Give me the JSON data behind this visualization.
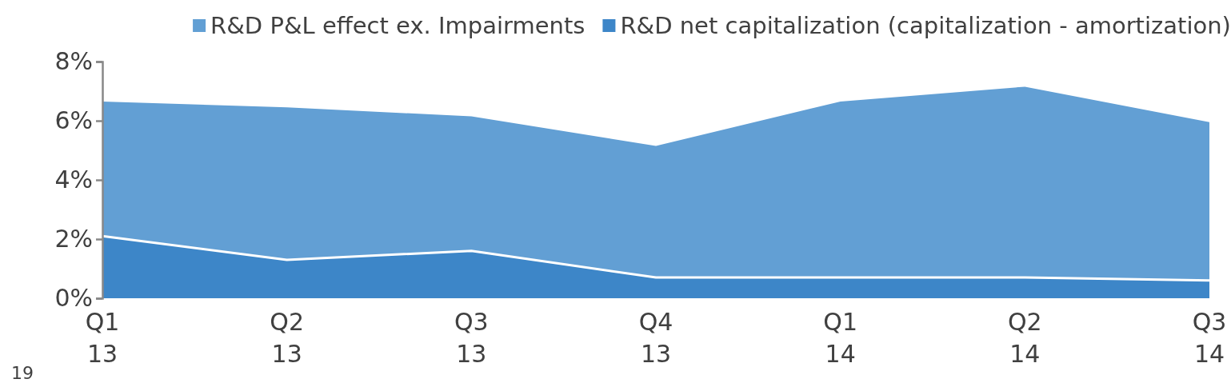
{
  "chart_data": {
    "type": "area",
    "stacked": true,
    "categories": [
      "Q1 13",
      "Q2 13",
      "Q3 13",
      "Q4 13",
      "Q1 14",
      "Q2 14",
      "Q3 14"
    ],
    "series": [
      {
        "name": "R&D net capitalization (capitalization - amortization)",
        "color": "#3d86c8",
        "values": [
          2.1,
          1.3,
          1.6,
          0.7,
          0.7,
          0.7,
          0.6
        ]
      },
      {
        "name": "R&D P&L effect ex. Impairments",
        "color": "#629fd4",
        "values": [
          4.55,
          5.15,
          4.55,
          4.45,
          5.95,
          6.45,
          5.35
        ]
      }
    ],
    "ylim": [
      0,
      8
    ],
    "yticks": [
      {
        "value": 0,
        "label": "0%"
      },
      {
        "value": 2,
        "label": "2%"
      },
      {
        "value": 4,
        "label": "4%"
      },
      {
        "value": 6,
        "label": "6%"
      },
      {
        "value": 8,
        "label": "8%"
      }
    ],
    "grid": false,
    "legend": "top",
    "annotations": [
      "19"
    ]
  }
}
